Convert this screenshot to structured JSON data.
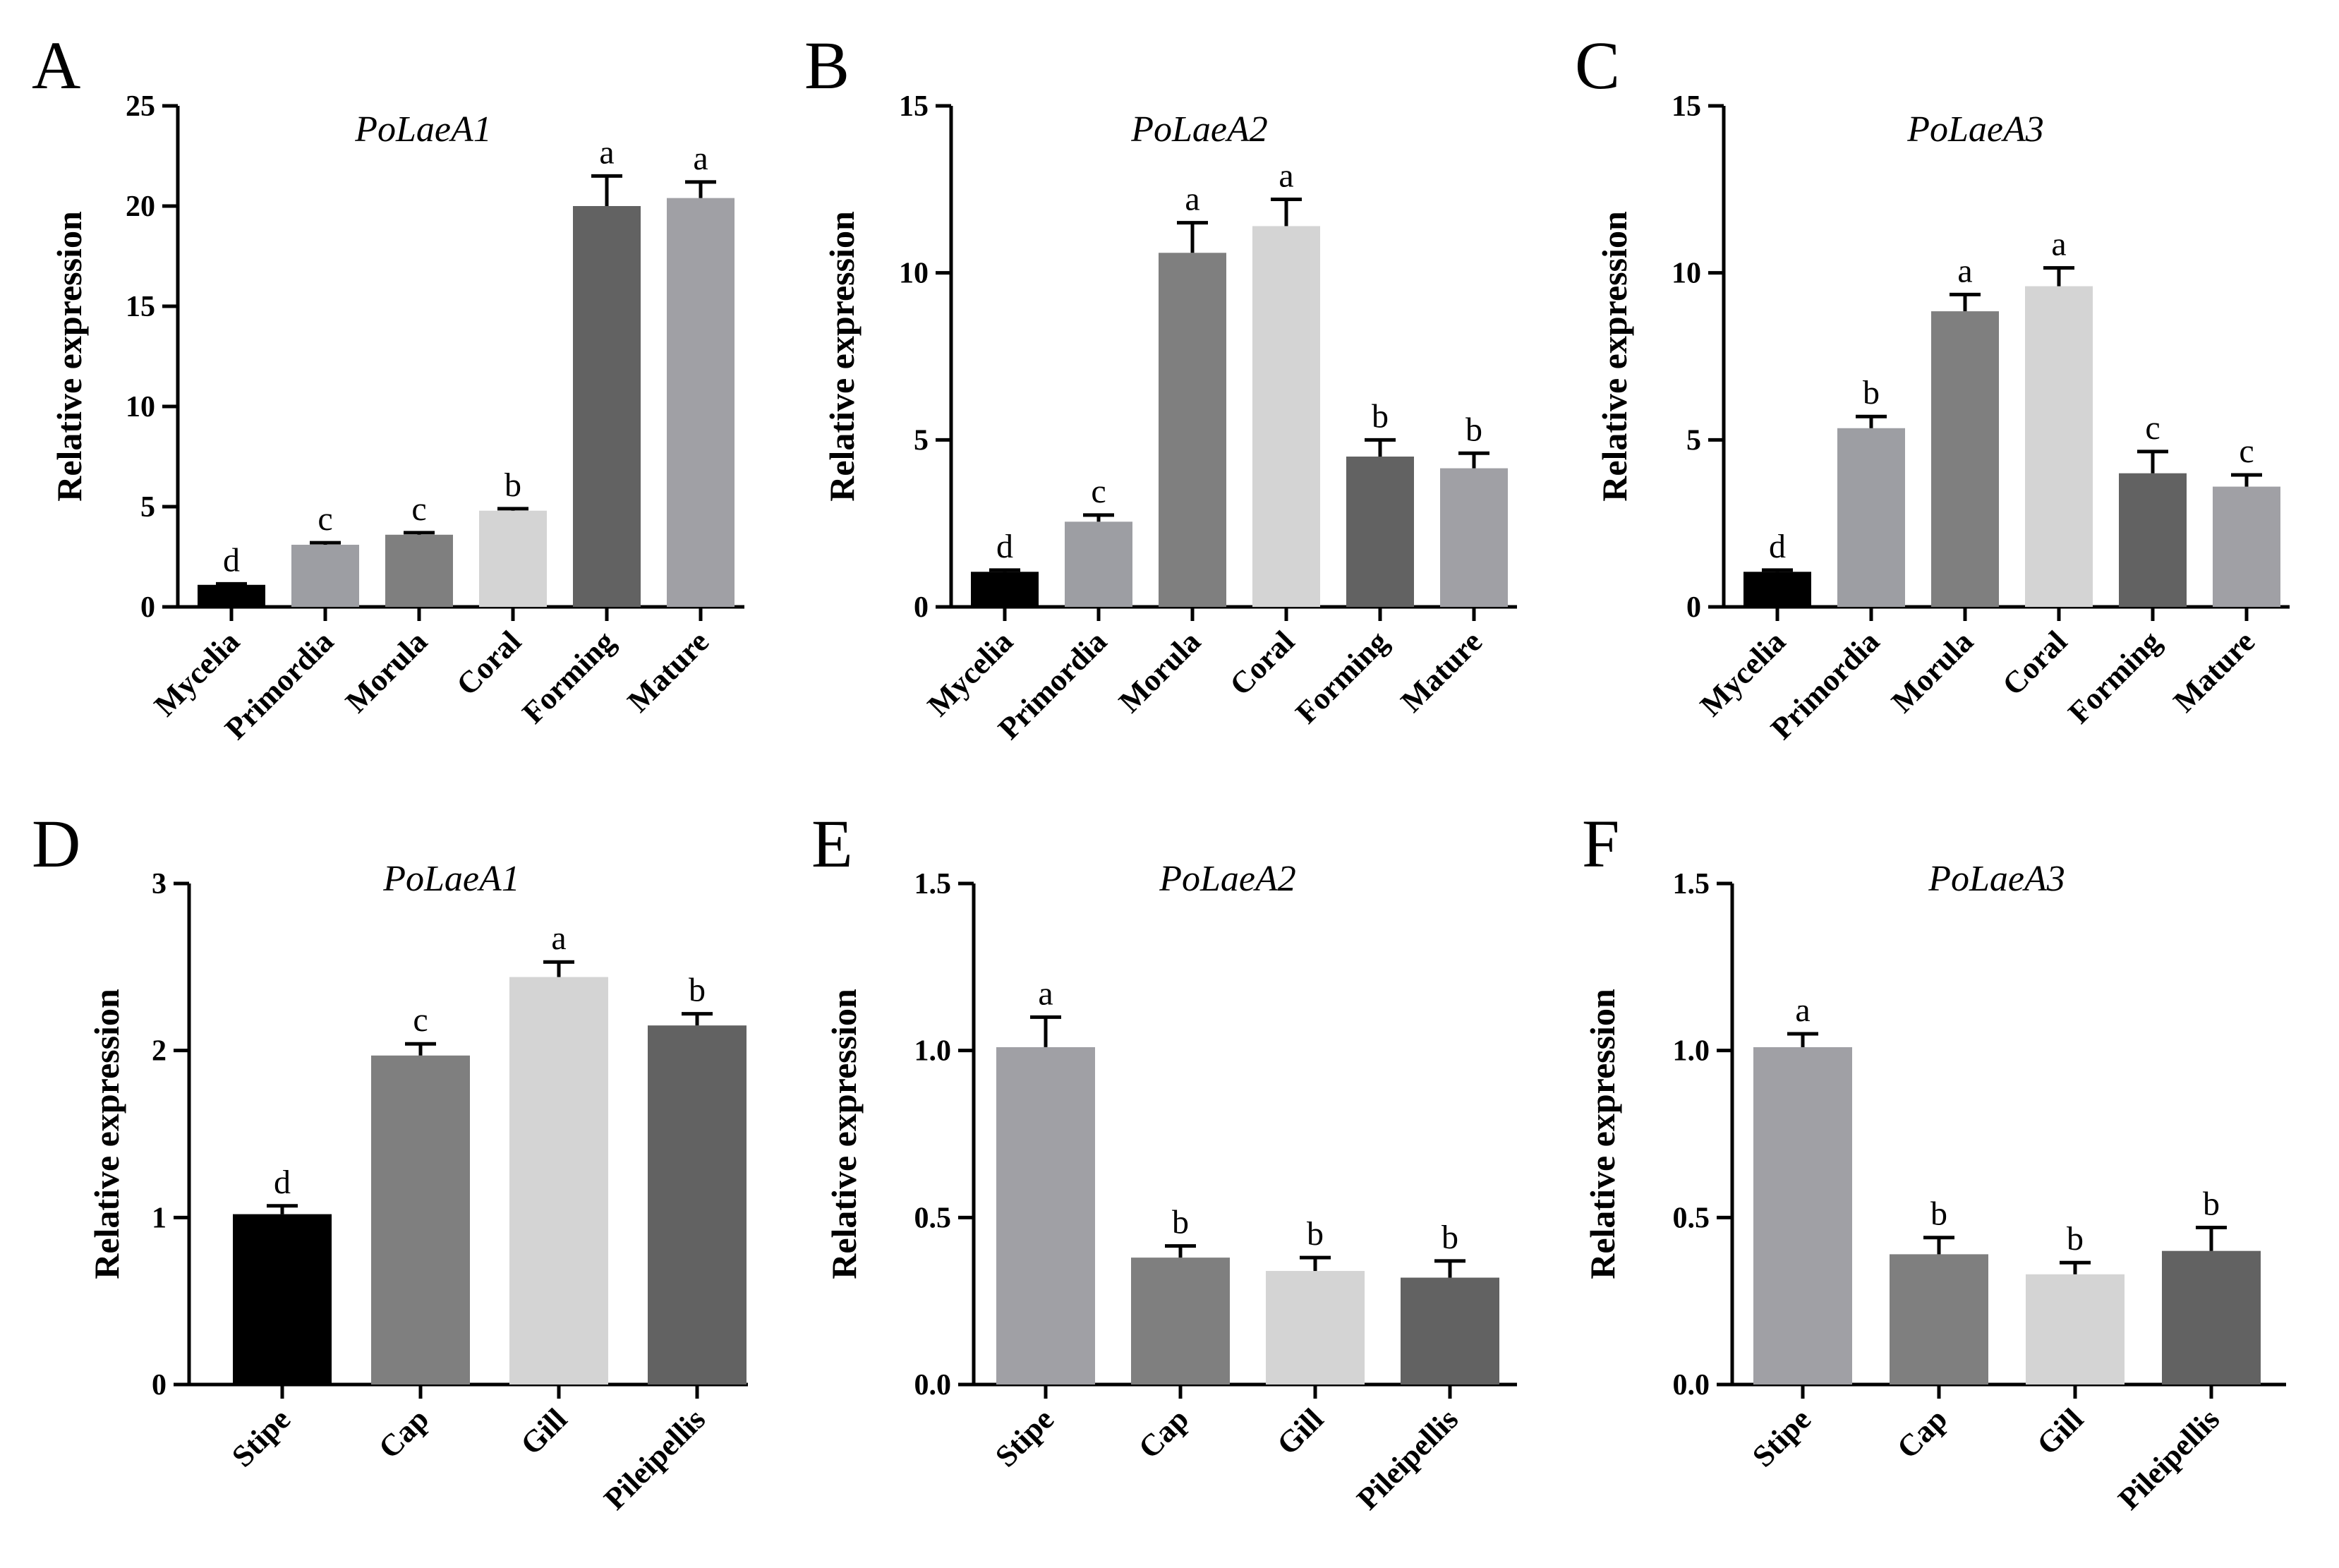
{
  "chart_data": [
    {
      "panel": "A",
      "type": "bar",
      "title": "PoLaeA1",
      "ylabel": "Relative expression",
      "ylim": [
        0,
        25
      ],
      "yticks": [
        "0",
        "5",
        "10",
        "15",
        "20",
        "25"
      ],
      "categories": [
        "Mycelia",
        "Primordia",
        "Morula",
        "Coral",
        "Forming",
        "Mature"
      ],
      "values": [
        1.1,
        3.1,
        3.6,
        4.8,
        20.0,
        20.4
      ],
      "errors": [
        0.05,
        0.1,
        0.1,
        0.1,
        1.5,
        0.8
      ],
      "significance": [
        "d",
        "c",
        "c",
        "b",
        "a",
        "a"
      ],
      "colors": [
        "#000000",
        "#9d9ea3",
        "#7f7f7f",
        "#d4d4d4",
        "#626262",
        "#a0a0a5"
      ]
    },
    {
      "panel": "B",
      "type": "bar",
      "title": "PoLaeA2",
      "ylabel": "Relative expression",
      "ylim": [
        0,
        15
      ],
      "yticks": [
        "0",
        "5",
        "10",
        "15"
      ],
      "categories": [
        "Mycelia",
        "Primordia",
        "Morula",
        "Coral",
        "Forming",
        "Mature"
      ],
      "values": [
        1.05,
        2.55,
        10.6,
        11.4,
        4.5,
        4.15
      ],
      "errors": [
        0.05,
        0.2,
        0.9,
        0.8,
        0.5,
        0.45
      ],
      "significance": [
        "d",
        "c",
        "a",
        "a",
        "b",
        "b"
      ],
      "colors": [
        "#000000",
        "#9d9ea3",
        "#7f7f7f",
        "#d4d4d4",
        "#626262",
        "#a0a0a5"
      ]
    },
    {
      "panel": "C",
      "type": "bar",
      "title": "PoLaeA3",
      "ylabel": "Relative expression",
      "ylim": [
        0,
        15
      ],
      "yticks": [
        "0",
        "5",
        "10",
        "15"
      ],
      "categories": [
        "Mycelia",
        "Primordia",
        "Morula",
        "Coral",
        "Forming",
        "Mature"
      ],
      "values": [
        1.05,
        5.35,
        8.85,
        9.6,
        4.0,
        3.6
      ],
      "errors": [
        0.05,
        0.35,
        0.5,
        0.55,
        0.65,
        0.35
      ],
      "significance": [
        "d",
        "b",
        "a",
        "a",
        "c",
        "c"
      ],
      "colors": [
        "#000000",
        "#9d9ea3",
        "#7f7f7f",
        "#d4d4d4",
        "#626262",
        "#a0a0a5"
      ]
    },
    {
      "panel": "D",
      "type": "bar",
      "title": "PoLaeA1",
      "ylabel": "Relative expression",
      "ylim": [
        0,
        3
      ],
      "yticks": [
        "0",
        "1",
        "2",
        "3"
      ],
      "categories": [
        "Stipe",
        "Cap",
        "Gill",
        "Pileipellis"
      ],
      "values": [
        1.02,
        1.97,
        2.44,
        2.15
      ],
      "errors": [
        0.05,
        0.07,
        0.09,
        0.07
      ],
      "significance": [
        "d",
        "c",
        "a",
        "b"
      ],
      "colors": [
        "#000000",
        "#7f7f7f",
        "#d4d4d4",
        "#626262"
      ]
    },
    {
      "panel": "E",
      "type": "bar",
      "title": "PoLaeA2",
      "ylabel": "Relative expression",
      "ylim": [
        0,
        1.5
      ],
      "yticks": [
        "0.0",
        "0.5",
        "1.0",
        "1.5"
      ],
      "categories": [
        "Stipe",
        "Cap",
        "Gill",
        "Pileipellis"
      ],
      "values": [
        1.01,
        0.38,
        0.34,
        0.32
      ],
      "errors": [
        0.09,
        0.035,
        0.04,
        0.05
      ],
      "significance": [
        "a",
        "b",
        "b",
        "b"
      ],
      "colors": [
        "#a0a0a5",
        "#7f7f7f",
        "#d4d4d4",
        "#626262"
      ]
    },
    {
      "panel": "F",
      "type": "bar",
      "title": "PoLaeA3",
      "ylabel": "Relative expression",
      "ylim": [
        0,
        1.5
      ],
      "yticks": [
        "0.0",
        "0.5",
        "1.0",
        "1.5"
      ],
      "categories": [
        "Stipe",
        "Cap",
        "Gill",
        "Pileipellis"
      ],
      "values": [
        1.01,
        0.39,
        0.33,
        0.4
      ],
      "errors": [
        0.04,
        0.05,
        0.035,
        0.07
      ],
      "significance": [
        "a",
        "b",
        "b",
        "b"
      ],
      "colors": [
        "#a0a0a5",
        "#7f7f7f",
        "#d4d4d4",
        "#626262"
      ]
    }
  ]
}
